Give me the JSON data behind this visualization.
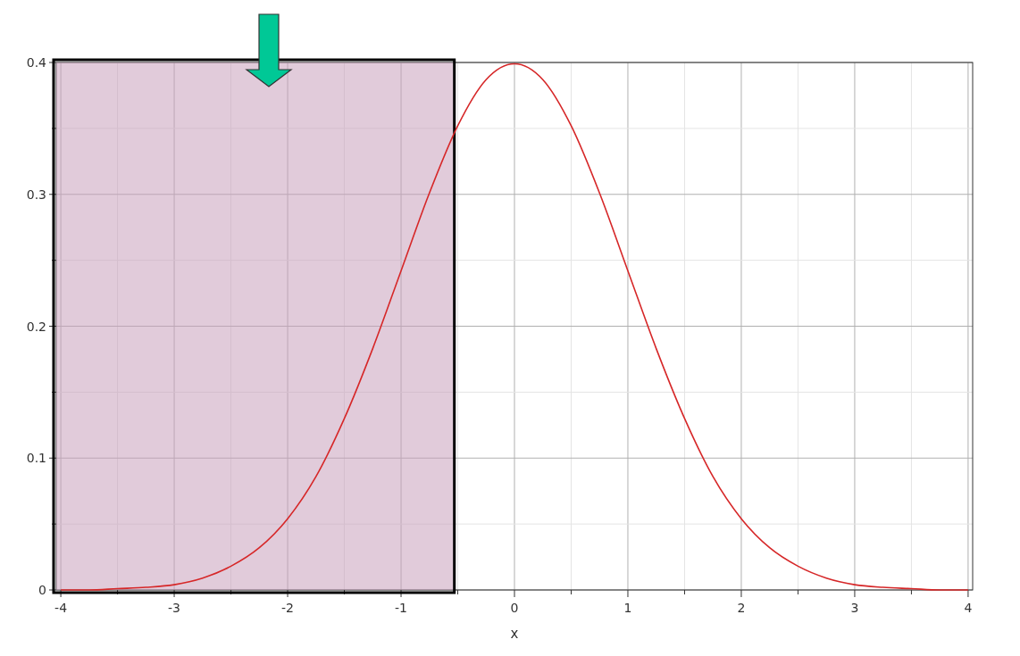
{
  "chart_data": {
    "type": "line",
    "xlabel": "x",
    "x": [
      -4,
      -3.75,
      -3.5,
      -3.25,
      -3,
      -2.75,
      -2.5,
      -2.25,
      -2,
      -1.75,
      -1.5,
      -1.25,
      -1,
      -0.75,
      -0.5,
      -0.25,
      0,
      0.25,
      0.5,
      0.75,
      1,
      1.25,
      1.5,
      1.75,
      2,
      2.25,
      2.5,
      2.75,
      3,
      3.25,
      3.5,
      3.75,
      4
    ],
    "series": [
      {
        "color": "#d62728",
        "values": [
          0,
          0,
          0.001,
          0.002,
          0.004,
          0.009,
          0.018,
          0.032,
          0.054,
          0.086,
          0.13,
          0.183,
          0.242,
          0.301,
          0.352,
          0.387,
          0.399,
          0.387,
          0.352,
          0.301,
          0.242,
          0.183,
          0.13,
          0.086,
          0.054,
          0.032,
          0.018,
          0.009,
          0.004,
          0.002,
          0.001,
          0,
          0
        ]
      }
    ],
    "xlim": [
      -4.04,
      4.04
    ],
    "ylim": [
      0,
      0.4
    ],
    "xticks": [
      -4,
      {
        "value": -3.5,
        "label": null
      },
      -3,
      {
        "value": -2.5,
        "label": null
      },
      -2,
      {
        "value": -1.5,
        "label": null
      },
      -1,
      {
        "value": -0.5,
        "label": null
      },
      0,
      {
        "value": 0.5,
        "label": null
      },
      1,
      {
        "value": 1.5,
        "label": null
      },
      2,
      {
        "value": 2.5,
        "label": null
      },
      3,
      {
        "value": 3.5,
        "label": null
      },
      4
    ],
    "yticks": [
      0,
      {
        "value": 0.05,
        "label": null
      },
      0.1,
      {
        "value": 0.15,
        "label": null
      },
      0.2,
      {
        "value": 0.25,
        "label": null
      },
      0.3,
      {
        "value": 0.35,
        "label": null
      },
      0.4
    ],
    "grid": true,
    "marker": "none",
    "line_style": "solid",
    "bands": [
      {
        "axis": "x",
        "from": -4.04,
        "to": -0.53,
        "color": "#c9a0bc"
      }
    ]
  }
}
